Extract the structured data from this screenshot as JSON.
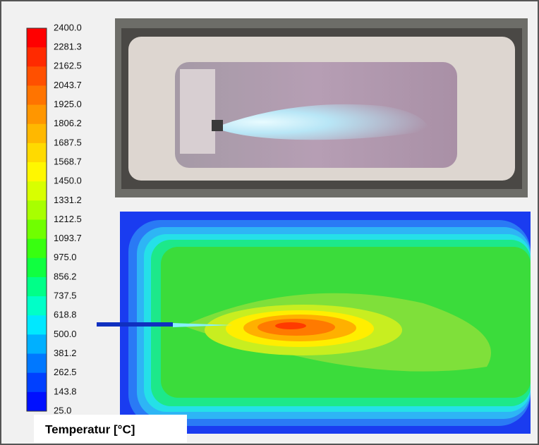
{
  "colorbar": {
    "title": "Temperatur [°C]",
    "labels": [
      "2400.0",
      "2281.3",
      "2162.5",
      "2043.7",
      "1925.0",
      "1806.2",
      "1687.5",
      "1568.7",
      "1450.0",
      "1331.2",
      "1212.5",
      "1093.7",
      "975.0",
      "856.2",
      "737.5",
      "618.8",
      "500.0",
      "381.2",
      "262.5",
      "143.8",
      "25.0"
    ]
  }
}
